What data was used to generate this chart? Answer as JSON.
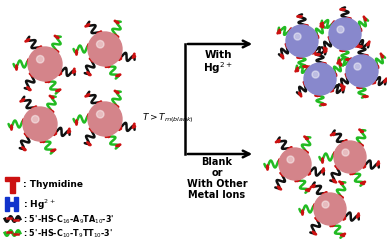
{
  "bg_color": "#ffffff",
  "pink_color": "#d4848a",
  "blue_color": "#8888cc",
  "black_dna_color": "#111111",
  "green_dna_color": "#22bb22",
  "red_t_color": "#cc1111",
  "blue_hg_color": "#1133cc",
  "label_with_hg": "With\nHg$^{2+}$",
  "label_blank": "Blank\nor\nWith Other\nMetal Ions",
  "label_temp": "$T>T_{m(blank)}$",
  "label_thymidine": ": Thymidine",
  "label_hg": ": Hg$^{2+}$",
  "label_seq1": ": 5'-HS-C$_{16}$-A$_9$TA$_{10}$-3'",
  "label_seq2": ": 5'-HS-C$_{10}$-T$_9$TT$_{10}$-3'"
}
